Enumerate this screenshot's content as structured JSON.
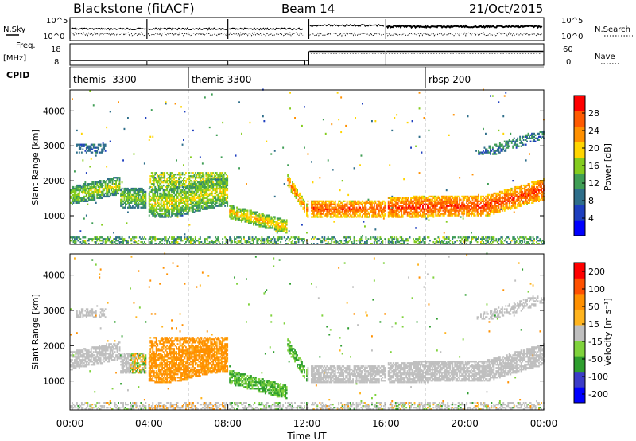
{
  "header": {
    "station": "Blackstone (fitACF)",
    "beam": "Beam 14",
    "date": "21/Oct/2015"
  },
  "colors": {
    "axis": "#000000",
    "guide": "#aaaaaa",
    "ground_scatter": "#bfbfbf"
  },
  "chart_data": [
    {
      "type": "line",
      "title": "",
      "left_label": "N.Sky",
      "right_label": "N.Search",
      "left_ticks": [
        "10^5",
        "10^0"
      ],
      "right_ticks": [
        "10^5",
        "10^0"
      ]
    },
    {
      "type": "line",
      "left_label_line1": "Freq.",
      "left_label_line2": "[MHz]",
      "right_label": "Nave",
      "left_ticks": [
        "18",
        "8"
      ],
      "right_ticks": [
        "60",
        "0"
      ],
      "freq_ylim": [
        8,
        18
      ],
      "nave_ylim": [
        0,
        60
      ]
    },
    {
      "type": "table",
      "label": "CPID",
      "segments": [
        {
          "start_hour": 0,
          "label": "themis -3300"
        },
        {
          "start_hour": 6,
          "label": "themis 3300"
        },
        {
          "start_hour": 18,
          "label": "rbsp 200"
        }
      ]
    },
    {
      "type": "heatmap",
      "parameter": "Power",
      "ylabel": "Slant Range [km]",
      "colorbar_label": "Power [dB]",
      "colorbar_ticks": [
        "28",
        "24",
        "20",
        "16",
        "12",
        "8",
        "4"
      ],
      "colorbar_range": [
        0,
        32
      ],
      "ylim": [
        180,
        4600
      ],
      "yticks": [
        "1000",
        "2000",
        "3000",
        "4000"
      ],
      "xlim": [
        0,
        24
      ],
      "colorscale": [
        "#0000ff",
        "#1e3fbf",
        "#2e6e8a",
        "#3f9e55",
        "#84cc1e",
        "#ffd500",
        "#ff9000",
        "#ff5a00",
        "#ff0000"
      ]
    },
    {
      "type": "heatmap",
      "parameter": "Velocity",
      "ylabel": "Slant Range [km]",
      "colorbar_label": "Velocity [m s⁻¹]",
      "colorbar_ticks": [
        "200",
        "100",
        "50",
        "15",
        "-15",
        "-50",
        "-100",
        "-200"
      ],
      "ylim": [
        180,
        4600
      ],
      "yticks": [
        "1000",
        "2000",
        "3000",
        "4000"
      ],
      "xlim": [
        0,
        24
      ],
      "xlabel": "Time UT",
      "xticks": [
        "00:00",
        "04:00",
        "08:00",
        "12:00",
        "16:00",
        "20:00",
        "00:00"
      ],
      "colorscale": [
        "#ff0000",
        "#ff5000",
        "#ff9000",
        "#ffb41e",
        "#bfbfbf",
        "#7fd23c",
        "#2e9e2e",
        "#3c3cc8",
        "#0000ff"
      ]
    }
  ]
}
